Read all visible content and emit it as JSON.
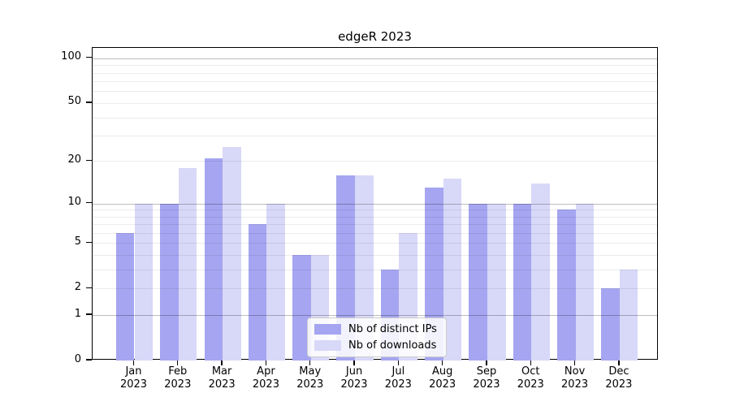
{
  "figure": {
    "background": "#ffffff"
  },
  "chart_data": {
    "type": "bar",
    "title": "edgeR 2023",
    "categories": [
      "Jan",
      "Feb",
      "Mar",
      "Apr",
      "May",
      "Jun",
      "Jul",
      "Aug",
      "Sep",
      "Oct",
      "Nov",
      "Dec"
    ],
    "x_year_label": "2023",
    "series": [
      {
        "name": "Nb of distinct IPs",
        "color": "#a5a5f1",
        "values": [
          6,
          10,
          21,
          7,
          4,
          16,
          3,
          13,
          10,
          10,
          9,
          2
        ]
      },
      {
        "name": "Nb of downloads",
        "color": "#d8d8f8",
        "values": [
          10,
          18,
          25,
          10,
          4,
          16,
          6,
          15,
          10,
          14,
          10,
          3
        ]
      }
    ],
    "yscale": "log1p",
    "ylim": [
      0,
      110
    ],
    "yticks": [
      0,
      1,
      2,
      5,
      10,
      20,
      50,
      100
    ],
    "major_gridlines": [
      1,
      10,
      100
    ],
    "minor_gridlines": [
      2,
      3,
      4,
      5,
      6,
      7,
      8,
      9,
      20,
      30,
      40,
      50,
      60,
      70,
      80,
      90
    ],
    "grid": true,
    "legend_position": "lower center",
    "axis_color": "#000000"
  }
}
